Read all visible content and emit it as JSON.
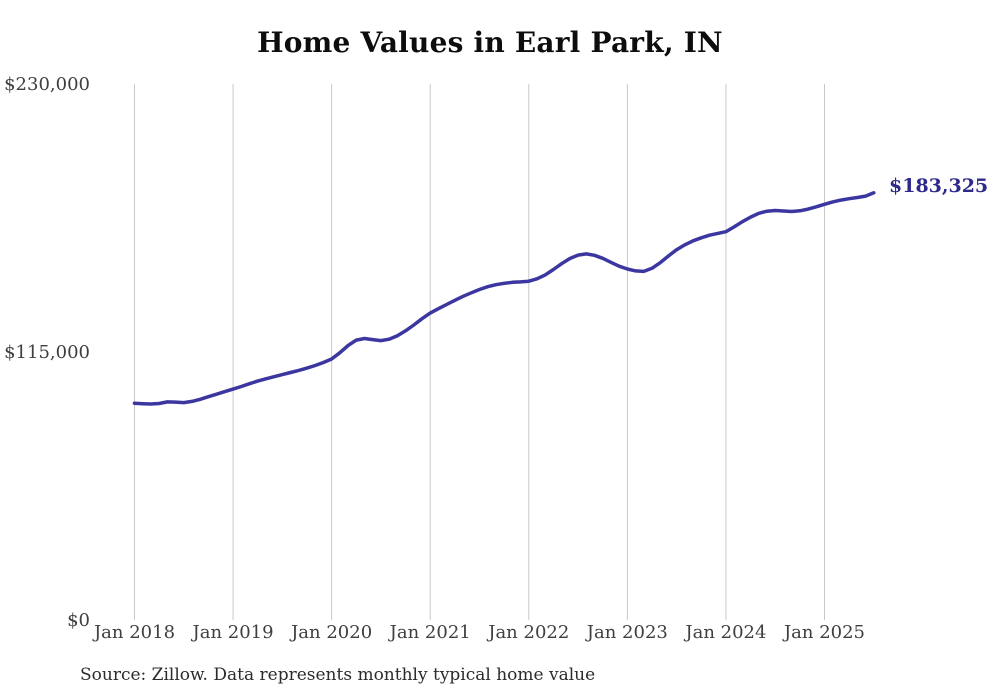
{
  "header": {
    "title": "Home Values in Earl Park, IN"
  },
  "footer": {
    "source": "Source: Zillow. Data represents monthly typical home value"
  },
  "colors": {
    "line": "#3c37a0",
    "end_label": "#2d2a8c",
    "grid": "#c9c9c9",
    "tick_text": "#3f3f3f",
    "title_text": "#0d0d0d",
    "background": "#ffffff"
  },
  "chart_data": {
    "type": "line",
    "title": "Home Values in Earl Park, IN",
    "xlabel": "",
    "ylabel": "",
    "ylim": [
      0,
      230000
    ],
    "grid": "vertical-only",
    "legend": "none",
    "series_name": "Monthly typical home value",
    "y_ticks": [
      {
        "label": "$230,000",
        "value": 230000
      },
      {
        "label": "$115,000",
        "value": 115000
      },
      {
        "label": "$0",
        "value": 0
      }
    ],
    "x_tick_labels": [
      "Jan 2018",
      "Jan 2019",
      "Jan 2020",
      "Jan 2021",
      "Jan 2022",
      "Jan 2023",
      "Jan 2024",
      "Jan 2025"
    ],
    "end_label": "$183,325",
    "final_value": 183325,
    "months": [
      "2018-01",
      "2018-02",
      "2018-03",
      "2018-04",
      "2018-05",
      "2018-06",
      "2018-07",
      "2018-08",
      "2018-09",
      "2018-10",
      "2018-11",
      "2018-12",
      "2019-01",
      "2019-02",
      "2019-03",
      "2019-04",
      "2019-05",
      "2019-06",
      "2019-07",
      "2019-08",
      "2019-09",
      "2019-10",
      "2019-11",
      "2019-12",
      "2020-01",
      "2020-02",
      "2020-03",
      "2020-04",
      "2020-05",
      "2020-06",
      "2020-07",
      "2020-08",
      "2020-09",
      "2020-10",
      "2020-11",
      "2020-12",
      "2021-01",
      "2021-02",
      "2021-03",
      "2021-04",
      "2021-05",
      "2021-06",
      "2021-07",
      "2021-08",
      "2021-09",
      "2021-10",
      "2021-11",
      "2021-12",
      "2022-01",
      "2022-02",
      "2022-03",
      "2022-04",
      "2022-05",
      "2022-06",
      "2022-07",
      "2022-08",
      "2022-09",
      "2022-10",
      "2022-11",
      "2022-12",
      "2023-01",
      "2023-02",
      "2023-03",
      "2023-04",
      "2023-05",
      "2023-06",
      "2023-07",
      "2023-08",
      "2023-09",
      "2023-10",
      "2023-11",
      "2023-12",
      "2024-01",
      "2024-02",
      "2024-03",
      "2024-04",
      "2024-05",
      "2024-06",
      "2024-07",
      "2024-08",
      "2024-09",
      "2024-10",
      "2024-11",
      "2024-12",
      "2025-01",
      "2025-02",
      "2025-03",
      "2025-04",
      "2025-05",
      "2025-06",
      "2025-07"
    ],
    "values": [
      93000,
      92800,
      92700,
      92900,
      93600,
      93500,
      93300,
      93800,
      94700,
      95800,
      96900,
      98000,
      99100,
      100200,
      101400,
      102500,
      103500,
      104400,
      105300,
      106200,
      107100,
      108100,
      109200,
      110500,
      112000,
      114700,
      117800,
      120100,
      120800,
      120300,
      119900,
      120500,
      122000,
      124100,
      126600,
      129300,
      131700,
      133600,
      135400,
      137200,
      138900,
      140400,
      141800,
      143000,
      143900,
      144500,
      144900,
      145100,
      145400,
      146400,
      148100,
      150400,
      152900,
      155100,
      156600,
      157100,
      156500,
      155200,
      153500,
      151800,
      150600,
      149800,
      149600,
      150900,
      153300,
      156200,
      158900,
      161000,
      162700,
      164000,
      165100,
      165900,
      166600,
      168700,
      170900,
      172900,
      174500,
      175400,
      175700,
      175500,
      175300,
      175600,
      176300,
      177300,
      178400,
      179400,
      180200,
      180800,
      181300,
      181900,
      183325
    ]
  }
}
